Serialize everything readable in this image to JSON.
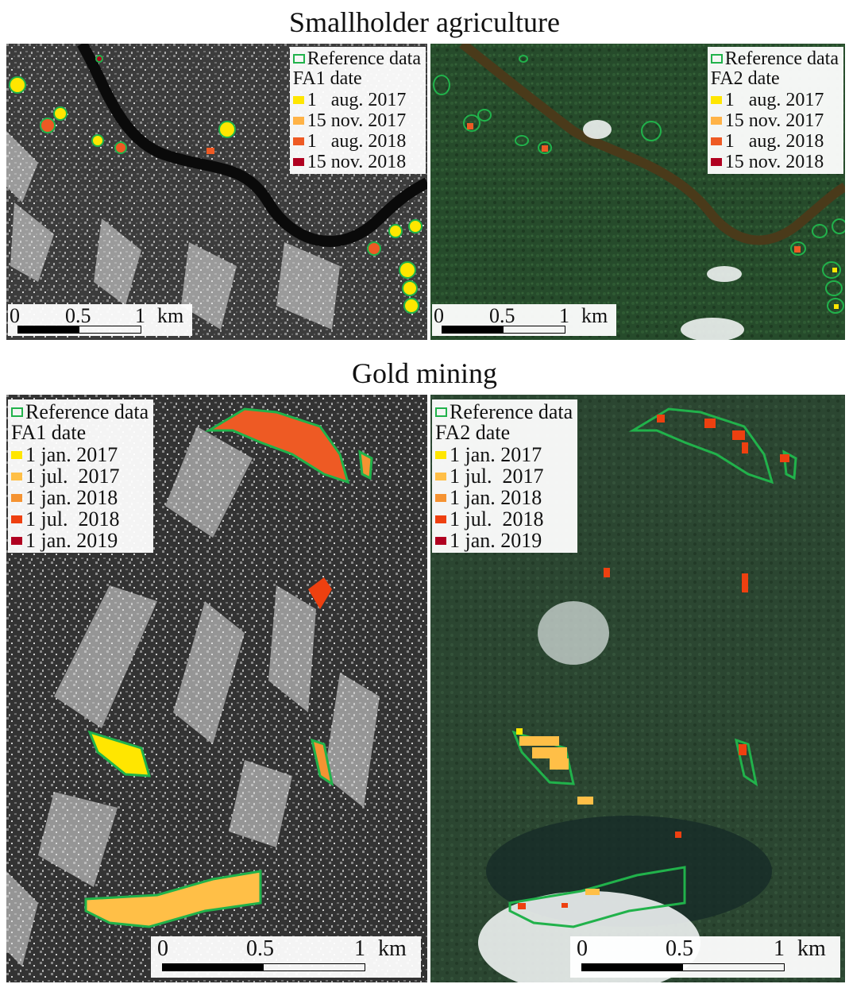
{
  "titles": {
    "smallholder": "Smallholder agriculture",
    "gold": "Gold mining"
  },
  "colors": {
    "reference_outline": "#21b24b",
    "sar_background": "#3a3a3a",
    "optical_background": "#254a2a",
    "river": "#4a3a1a"
  },
  "smallholder": {
    "left": {
      "legend": {
        "reference": "Reference data",
        "header": "FA1 date",
        "items": [
          {
            "label": "1   aug. 2017",
            "color": "#ffe600"
          },
          {
            "label": "15 nov. 2017",
            "color": "#ffb347"
          },
          {
            "label": "1   aug. 2018",
            "color": "#ee5a24"
          },
          {
            "label": "15 nov. 2018",
            "color": "#b00020"
          }
        ]
      },
      "scale": {
        "l0": "0",
        "l1": "0.5",
        "l2": "1",
        "unit": "km"
      }
    },
    "right": {
      "legend": {
        "reference": "Reference data",
        "header": "FA2 date",
        "items": [
          {
            "label": "1   aug. 2017",
            "color": "#ffe600"
          },
          {
            "label": "15 nov. 2017",
            "color": "#ffb347"
          },
          {
            "label": "1   aug. 2018",
            "color": "#ee5a24"
          },
          {
            "label": "15 nov. 2018",
            "color": "#b00020"
          }
        ]
      },
      "scale": {
        "l0": "0",
        "l1": "0.5",
        "l2": "1",
        "unit": "km"
      }
    }
  },
  "gold": {
    "left": {
      "legend": {
        "reference": "Reference data",
        "header": "FA1 date",
        "items": [
          {
            "label": "1 jan. 2017",
            "color": "#ffe600"
          },
          {
            "label": "1 jul.  2017",
            "color": "#ffbf47"
          },
          {
            "label": "1 jan. 2018",
            "color": "#f59332"
          },
          {
            "label": "1 jul.  2018",
            "color": "#ee4010"
          },
          {
            "label": "1 jan. 2019",
            "color": "#b00020"
          }
        ]
      },
      "scale": {
        "l0": "0",
        "l1": "0.5",
        "l2": "1",
        "unit": "km"
      }
    },
    "right": {
      "legend": {
        "reference": "Reference data",
        "header": "FA2 date",
        "items": [
          {
            "label": "1 jan. 2017",
            "color": "#ffe600"
          },
          {
            "label": "1 jul.  2017",
            "color": "#ffbf47"
          },
          {
            "label": "1 jan. 2018",
            "color": "#f59332"
          },
          {
            "label": "1 jul.  2018",
            "color": "#ee4010"
          },
          {
            "label": "1 jan. 2019",
            "color": "#b00020"
          }
        ]
      },
      "scale": {
        "l0": "0",
        "l1": "0.5",
        "l2": "1",
        "unit": "km"
      }
    }
  }
}
